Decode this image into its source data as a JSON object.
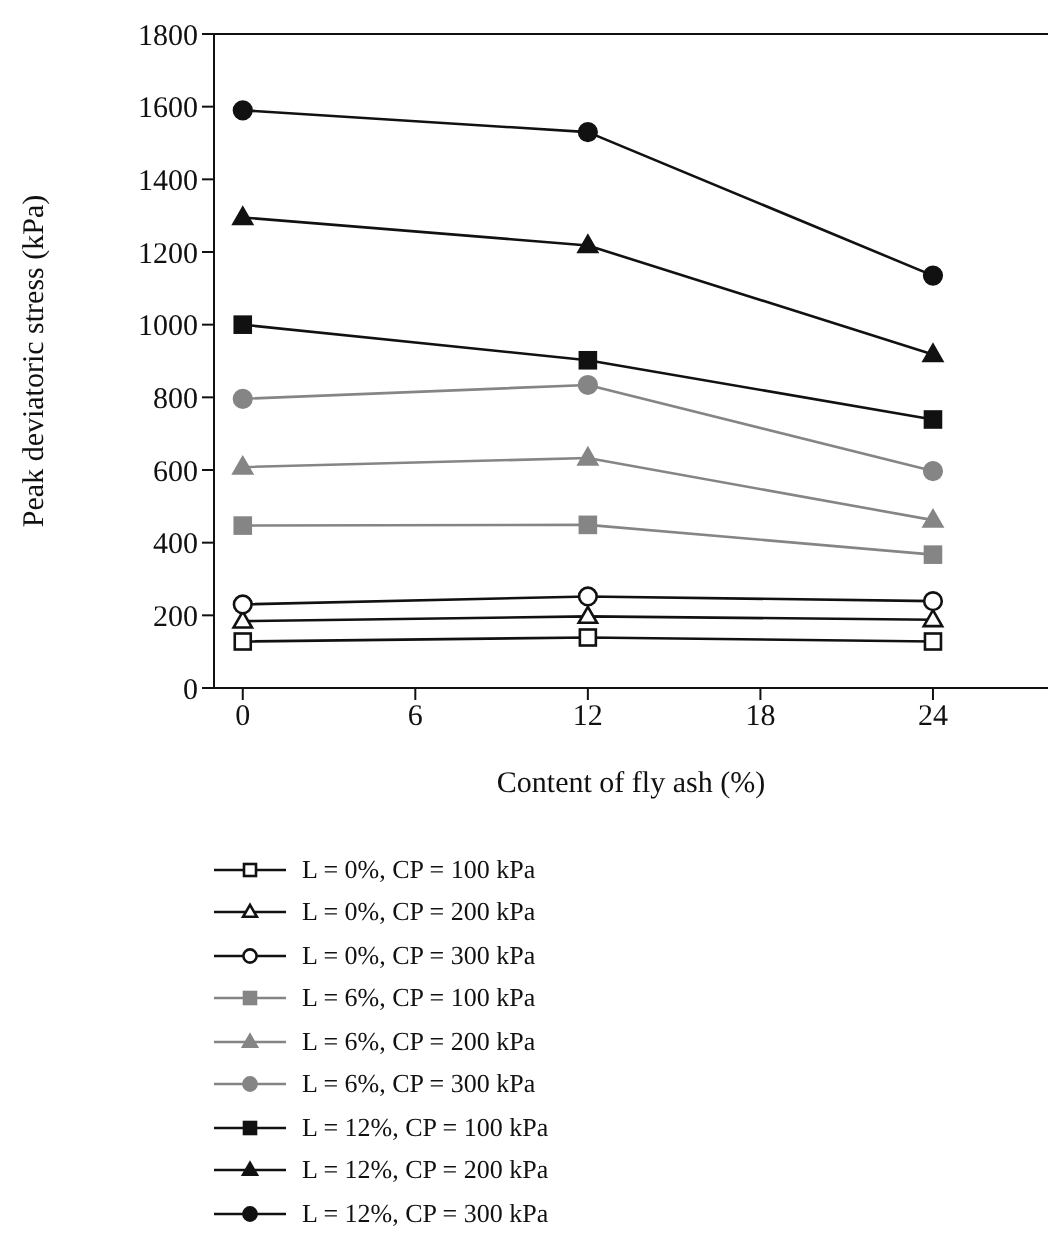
{
  "chart_data": {
    "type": "line",
    "xlabel": "Content of fly ash (%)",
    "ylabel": "Peak deviatoric stress (kPa)",
    "x": [
      0,
      12,
      24
    ],
    "xlim": [
      -1,
      28
    ],
    "xticks": [
      0,
      6,
      12,
      18,
      24
    ],
    "ylim": [
      0,
      1800
    ],
    "yticks": [
      0,
      200,
      400,
      600,
      800,
      1000,
      1200,
      1400,
      1600,
      1800
    ],
    "grid": false,
    "legend": "bottom",
    "line_style": "solid",
    "series": [
      {
        "name": "L = 0%, CP = 100 kPa",
        "color": "#111111",
        "marker": "square-open",
        "values": [
          128,
          139,
          128
        ]
      },
      {
        "name": "L = 0%, CP = 200 kPa",
        "color": "#111111",
        "marker": "triangle-open",
        "values": [
          184,
          197,
          188
        ]
      },
      {
        "name": "L = 0%, CP = 300 kPa",
        "color": "#111111",
        "marker": "circle-open",
        "values": [
          230,
          252,
          239
        ]
      },
      {
        "name": "L = 6%, CP = 100 kPa",
        "color": "#858585",
        "marker": "square",
        "values": [
          447,
          449,
          367
        ]
      },
      {
        "name": "L = 6%, CP = 200 kPa",
        "color": "#858585",
        "marker": "triangle",
        "values": [
          608,
          633,
          462
        ]
      },
      {
        "name": "L = 6%, CP = 300 kPa",
        "color": "#858585",
        "marker": "circle",
        "values": [
          796,
          834,
          597
        ]
      },
      {
        "name": "L = 12%, CP = 100 kPa",
        "color": "#111111",
        "marker": "square",
        "values": [
          1000,
          902,
          739
        ]
      },
      {
        "name": "L = 12%, CP = 200 kPa",
        "color": "#111111",
        "marker": "triangle",
        "values": [
          1295,
          1218,
          918
        ]
      },
      {
        "name": "L = 12%, CP = 300 kPa",
        "color": "#111111",
        "marker": "circle",
        "values": [
          1590,
          1530,
          1135
        ]
      }
    ]
  }
}
